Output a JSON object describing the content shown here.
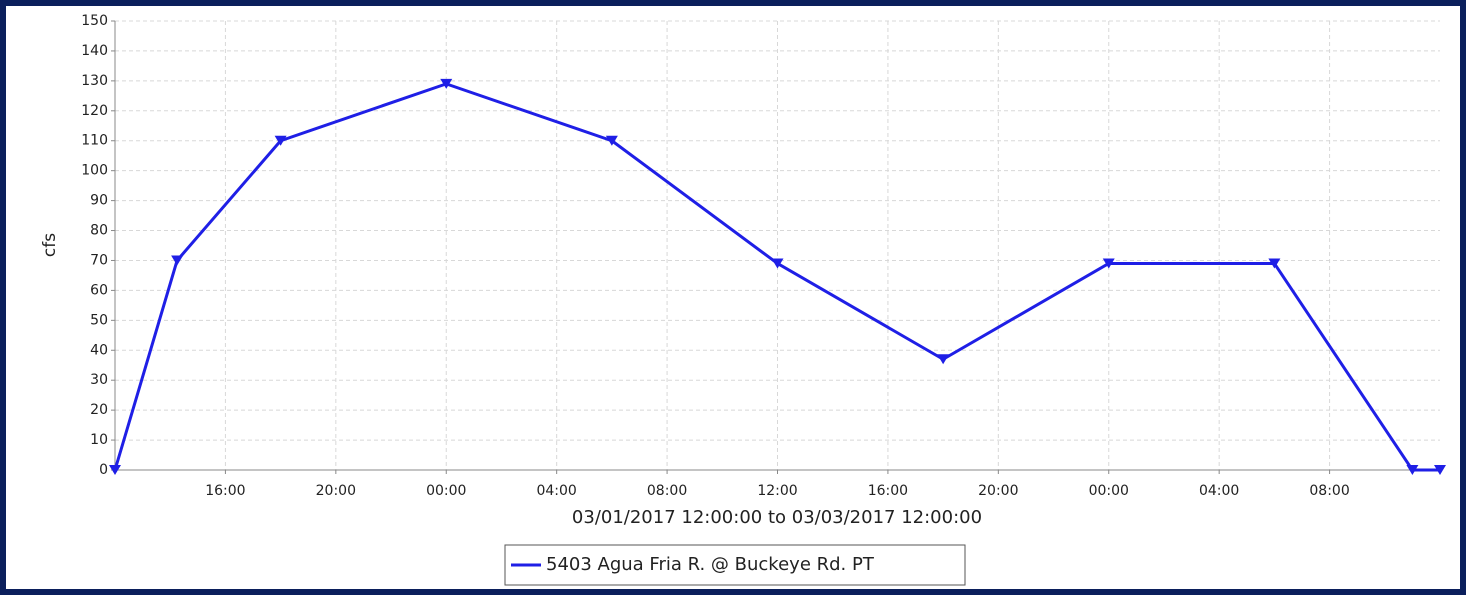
{
  "chart_data": {
    "type": "line",
    "y_label": "cfs",
    "x_label": "03/01/2017 12:00:00 to 03/03/2017 12:00:00",
    "x": [
      "03/01/2017 12:00:00",
      "03/01/2017 14:15:00",
      "03/01/2017 18:00:00",
      "03/02/2017 00:00:00",
      "03/02/2017 06:00:00",
      "03/02/2017 12:00:00",
      "03/02/2017 18:00:00",
      "03/03/2017 00:00:00",
      "03/03/2017 06:00:00",
      "03/03/2017 11:00:00",
      "03/03/2017 12:00:00"
    ],
    "series": [
      {
        "name": "5403 Agua Fria R. @ Buckeye Rd. PT",
        "color": "#1f1fe6",
        "values": [
          0,
          70,
          110,
          129,
          110,
          69,
          37,
          69,
          69,
          0,
          0
        ]
      }
    ],
    "xlim": [
      "03/01/2017 12:00:00",
      "03/03/2017 12:00:00"
    ],
    "xticks": [
      {
        "value": "03/01/2017 16:00:00",
        "label": "16:00"
      },
      {
        "value": "03/01/2017 20:00:00",
        "label": "20:00"
      },
      {
        "value": "03/02/2017 00:00:00",
        "label": "00:00"
      },
      {
        "value": "03/02/2017 04:00:00",
        "label": "04:00"
      },
      {
        "value": "03/02/2017 08:00:00",
        "label": "08:00"
      },
      {
        "value": "03/02/2017 12:00:00",
        "label": "12:00"
      },
      {
        "value": "03/02/2017 16:00:00",
        "label": "16:00"
      },
      {
        "value": "03/02/2017 20:00:00",
        "label": "20:00"
      },
      {
        "value": "03/03/2017 00:00:00",
        "label": "00:00"
      },
      {
        "value": "03/03/2017 04:00:00",
        "label": "04:00"
      },
      {
        "value": "03/03/2017 08:00:00",
        "label": "08:00"
      }
    ],
    "ylim": [
      0,
      150
    ],
    "yticks": [
      0,
      10,
      20,
      30,
      40,
      50,
      60,
      70,
      80,
      90,
      100,
      110,
      120,
      130,
      140,
      150
    ],
    "grid": true
  }
}
